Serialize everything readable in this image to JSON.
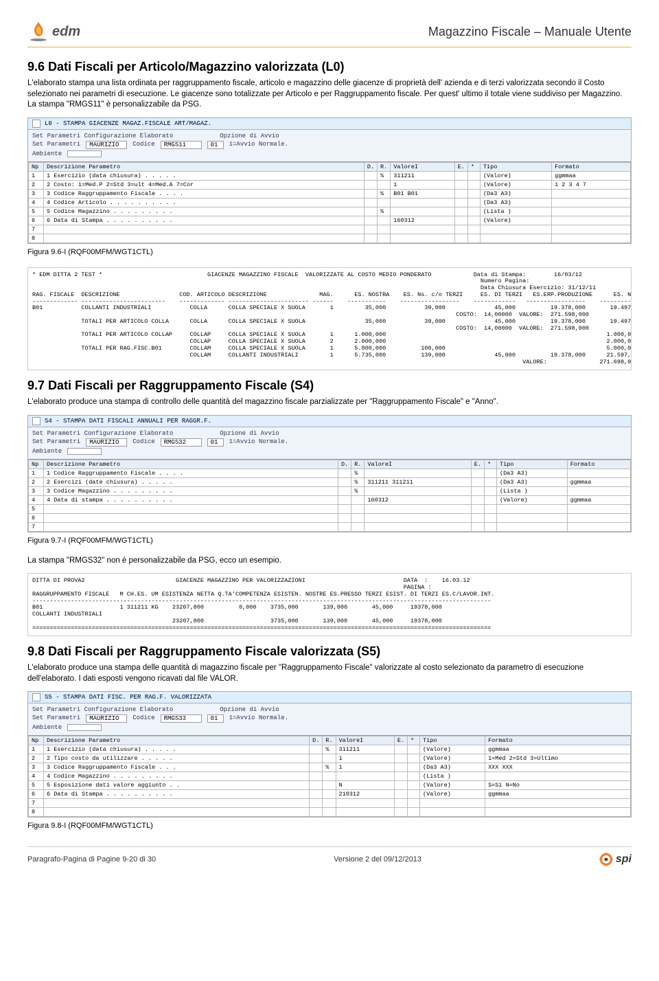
{
  "header": {
    "logo_text": "edm",
    "doc_title": "Magazzino Fiscale – Manuale Utente"
  },
  "section96": {
    "heading": "9.6 Dati Fiscali per Articolo/Magazzino valorizzata (L0)",
    "body": "L'elaborato stampa una lista ordinata per raggruppamento fiscale, articolo e magazzino delle giacenze di proprietà dell' azienda e di terzi valorizzata secondo il Costo selezionato nei parametri di esecuzione.  Le giacenze sono totalizzate per Articolo e per Raggruppamento fiscale. Per quest' ultimo il totale viene suddiviso per Magazzino.    La stampa \"RMGS11\" è personalizzabile da PSG.",
    "caption": "Figura 9.6-I (RQF00MFM/WGT1CTL)"
  },
  "shot96": {
    "title": "L0 - STAMPA GIACENZE MAGAZ.FISCALE ART/MAGAZ.",
    "param1": "Set Parametri Configurazione Elaborato",
    "param2_k": "Set Parametri",
    "param2_v1": "MAURIZIO",
    "param2_k2": "Codice",
    "param2_v2": "RMGS11",
    "param3_k": "Opzione di Avvio",
    "param3_v": "01",
    "param3_v2": "1=Avvio Normale.",
    "param4_k": "Ambiente",
    "cols": [
      "Np",
      "Descrizione Parametro",
      "D.",
      "R.",
      "ValoreI",
      "E.",
      "*",
      "Tipo",
      "Formato"
    ],
    "rows": [
      [
        "1",
        "1 Esercizio (data chiusura) . . . . .",
        "",
        "%",
        "311211",
        "",
        "",
        "(Valore)",
        "ggmmaa"
      ],
      [
        "2",
        "2 Costo: 1=Med.P 2=Std 3=ult 4=Med.A 7=Cor",
        "",
        "",
        "1",
        "",
        "",
        "(Valore)",
        "1 2 3 4 7"
      ],
      [
        "3",
        "3 Codice Raggruppamento Fiscale . . . .",
        "",
        "%",
        "B01 B01",
        "",
        "",
        "(Da3 A3)",
        ""
      ],
      [
        "4",
        "4 Codice Articolo . . . . . . . . . .",
        "",
        "",
        "",
        "",
        "",
        "(Da3 A3)",
        ""
      ],
      [
        "5",
        "5 Codice Magazzino . . . . . . . . .",
        "",
        "%",
        "",
        "",
        "",
        "(Lista )",
        ""
      ],
      [
        "6",
        "6 Data di Stampa . . . . . . . . . .",
        "",
        "",
        "160312",
        "",
        "",
        "(Valore)",
        ""
      ],
      [
        "7",
        "",
        "",
        "",
        "",
        "",
        "",
        "",
        ""
      ],
      [
        "8",
        "",
        "",
        "",
        "",
        "",
        "",
        "",
        ""
      ]
    ]
  },
  "report96": "* EDM DITTA 2 TEST *                              GIACENZE MAGAZZINO FISCALE  VALORIZZATE AL COSTO MEDIO PONDERATO            Data di Stampa:        16/03/12\n                                                                                                                                Numero Pagina:\n                                                                                                                                Data Chiusura Esercizio: 31/12/11\nRAG. FISCALE  DESCRIZIONE                 COD. ARTICOLO DESCRIZIONE               MAG.      ES. NOSTRA    ES. Ns. c/o TERZI     ES. DI TERZI   ES.ERP.PRODUZIONE      ES. NETTA\n------------- ------------------------    ------------- ----------------------- ------    -----------    -----------------    ------------   -----------------    ------------\nB01           COLLANTI INDUSTRIALI           COLLA      COLLA SPECIALE X SUOLA       1         35,000           39,000              45,000          19.378,000       19.497,000\n                                                                                                                         COSTO:  14,00000  VALORE:  271.598,000\n              TOTALI PER ARTICOLO COLLA      COLLA      COLLA SPECIALE X SUOLA                 35,000           39,000              45,000          19.378,000       19.497,000\n                                                                                                                         COSTO:  14,00000  VALORE:  271.598,000\n              TOTALI PER ARTICOLO COLLAP     COLLAP     COLLA SPECIALE X SUOLA       1      1.000,000                                                               1.000,000\n                                             COLLAP     COLLA SPECIALE X SUOLA       2      2.000,000                                                               2.000,000\n              TOTALI PER RAG.FISC.B01        COLLAM     COLLA SPECIALE X SUOLA       1      5.000,000          100,000                                              5.000,000\n                                             COLLAM     COLLANTI INDUSTRIALI         1      5.735,000          139,000              45,000          19.378,000      21.597,000\n                                                                                                                                            VALORE:               271.698,000",
  "section97": {
    "heading": "9.7 Dati Fiscali per Raggruppamento Fiscale (S4)",
    "body": "L'elaborato produce una stampa di controllo delle quantità del magazzino fiscale parzializzate per \"Raggruppamento Fiscale\" e \"Anno\".",
    "caption": "Figura 9.7-I (RQF00MFM/WGT1CTL)",
    "note": "La stampa \"RMGS32\" non è personalizzabile da PSG, ecco un esempio."
  },
  "shot97": {
    "title": "S4 - STAMPA DATI FISCALI ANNUALI PER RAGGR.F.",
    "param2_v2": "RMGS32",
    "rows": [
      [
        "1",
        "1 Codice Raggruppamento Fiscale . . . .",
        "",
        "%",
        "",
        "",
        "",
        "(Da3 A3)",
        ""
      ],
      [
        "2",
        "2 Esercizi (date chiusura) . . . . .",
        "",
        "%",
        "311211 311211",
        "",
        "",
        "(Da3 A3)",
        "ggmmaa"
      ],
      [
        "3",
        "3 Codice Magazzino . . . . . . . . .",
        "",
        "%",
        "",
        "",
        "",
        "(Lista )",
        ""
      ],
      [
        "4",
        "4 Data di stampa . . . . . . . . . .",
        "",
        "",
        "160312",
        "",
        "",
        "(Valore)",
        "ggmmaa"
      ],
      [
        "5",
        "",
        "",
        "",
        "",
        "",
        "",
        "",
        ""
      ],
      [
        "6",
        "",
        "",
        "",
        "",
        "",
        "",
        "",
        ""
      ],
      [
        "7",
        "",
        "",
        "",
        "",
        "",
        "",
        "",
        ""
      ]
    ]
  },
  "report97": "DITTA DI PROVA2                          GIACENZE MAGAZZINO PER VALORIZZAZIONI                            DATA  :    16.03.12\n                                                                                                          PAGINA :\nRAGGRUPPAMENTO FISCALE   M CH.ES. UM ESISTENZA NETTA Q.TA'COMPETENZA ESISTEN. NOSTRE ES.PRESSO TERZI ESIST. DI TERZI ES.C/LAVOR.INT.\n-----------------------------------------------------------------------------------------------------------------------------------\nB01                      1 311211 KG    23207,800          0,000    3735,000       139,000       45,000     19378,000\nCOLLANTI INDUSTRIALI\n                                        23207,800                   3735,000       139,000       45,000     19378,000\n===================================================================================================================================",
  "section98": {
    "heading": "9.8 Dati Fiscali per Raggruppamento Fiscale valorizzata (S5)",
    "body": "L'elaborato produce una stampa delle quantità di magazzino fiscale per \"Raggruppamento Fiscale\" valorizzate al costo selezionato da parametro di esecuzione dell'elaborato.   I dati esposti vengono ricavati dal file VALOR.",
    "caption": "Figura 9.8-I (RQF00MFM/WGT1CTL)"
  },
  "shot98": {
    "title": "S5 - STAMPA DATI FISC. PER RAG.F. VALORIZZATA",
    "param2_v2": "RMGS33",
    "rows": [
      [
        "1",
        "1 Esercizio (data chiusura) . . . . .",
        "",
        "%",
        "311211",
        "",
        "",
        "(Valore)",
        "ggmmaa"
      ],
      [
        "2",
        "2 Tipo costo da utilizzare . . . . .",
        "",
        "",
        "1",
        "",
        "",
        "(Valore)",
        "1=Med 2=Std 3=Ultimo"
      ],
      [
        "3",
        "3 Codice Raggruppamento Fiscale . . .",
        "",
        "%",
        "1",
        "",
        "",
        "(Da3 A3)",
        "XXX XXX"
      ],
      [
        "4",
        "4 Codice Magazzino . . . . . . . . .",
        "",
        "",
        "",
        "",
        "",
        "(Lista )",
        ""
      ],
      [
        "5",
        "5 Esposizione dati valore aggiunto . .",
        "",
        "",
        "N",
        "",
        "",
        "(Valore)",
        "S=Si  N=No"
      ],
      [
        "6",
        "6 Data di Stampa . . . . . . . . . .",
        "",
        "",
        "210312",
        "",
        "",
        "(Valore)",
        "ggmmaa"
      ],
      [
        "7",
        "",
        "",
        "",
        "",
        "",
        "",
        "",
        ""
      ],
      [
        "8",
        "",
        "",
        "",
        "",
        "",
        "",
        "",
        ""
      ]
    ]
  },
  "footer": {
    "left": "Paragrafo-Pagina di Pagine 9-20 di 30",
    "center": "Versione 2 del 09/12/2013",
    "right": "spi"
  },
  "colors": {
    "header_rule": "#e0b050",
    "screenshot_bg": "#eef4fa",
    "grid_border": "#bbbbbb"
  }
}
